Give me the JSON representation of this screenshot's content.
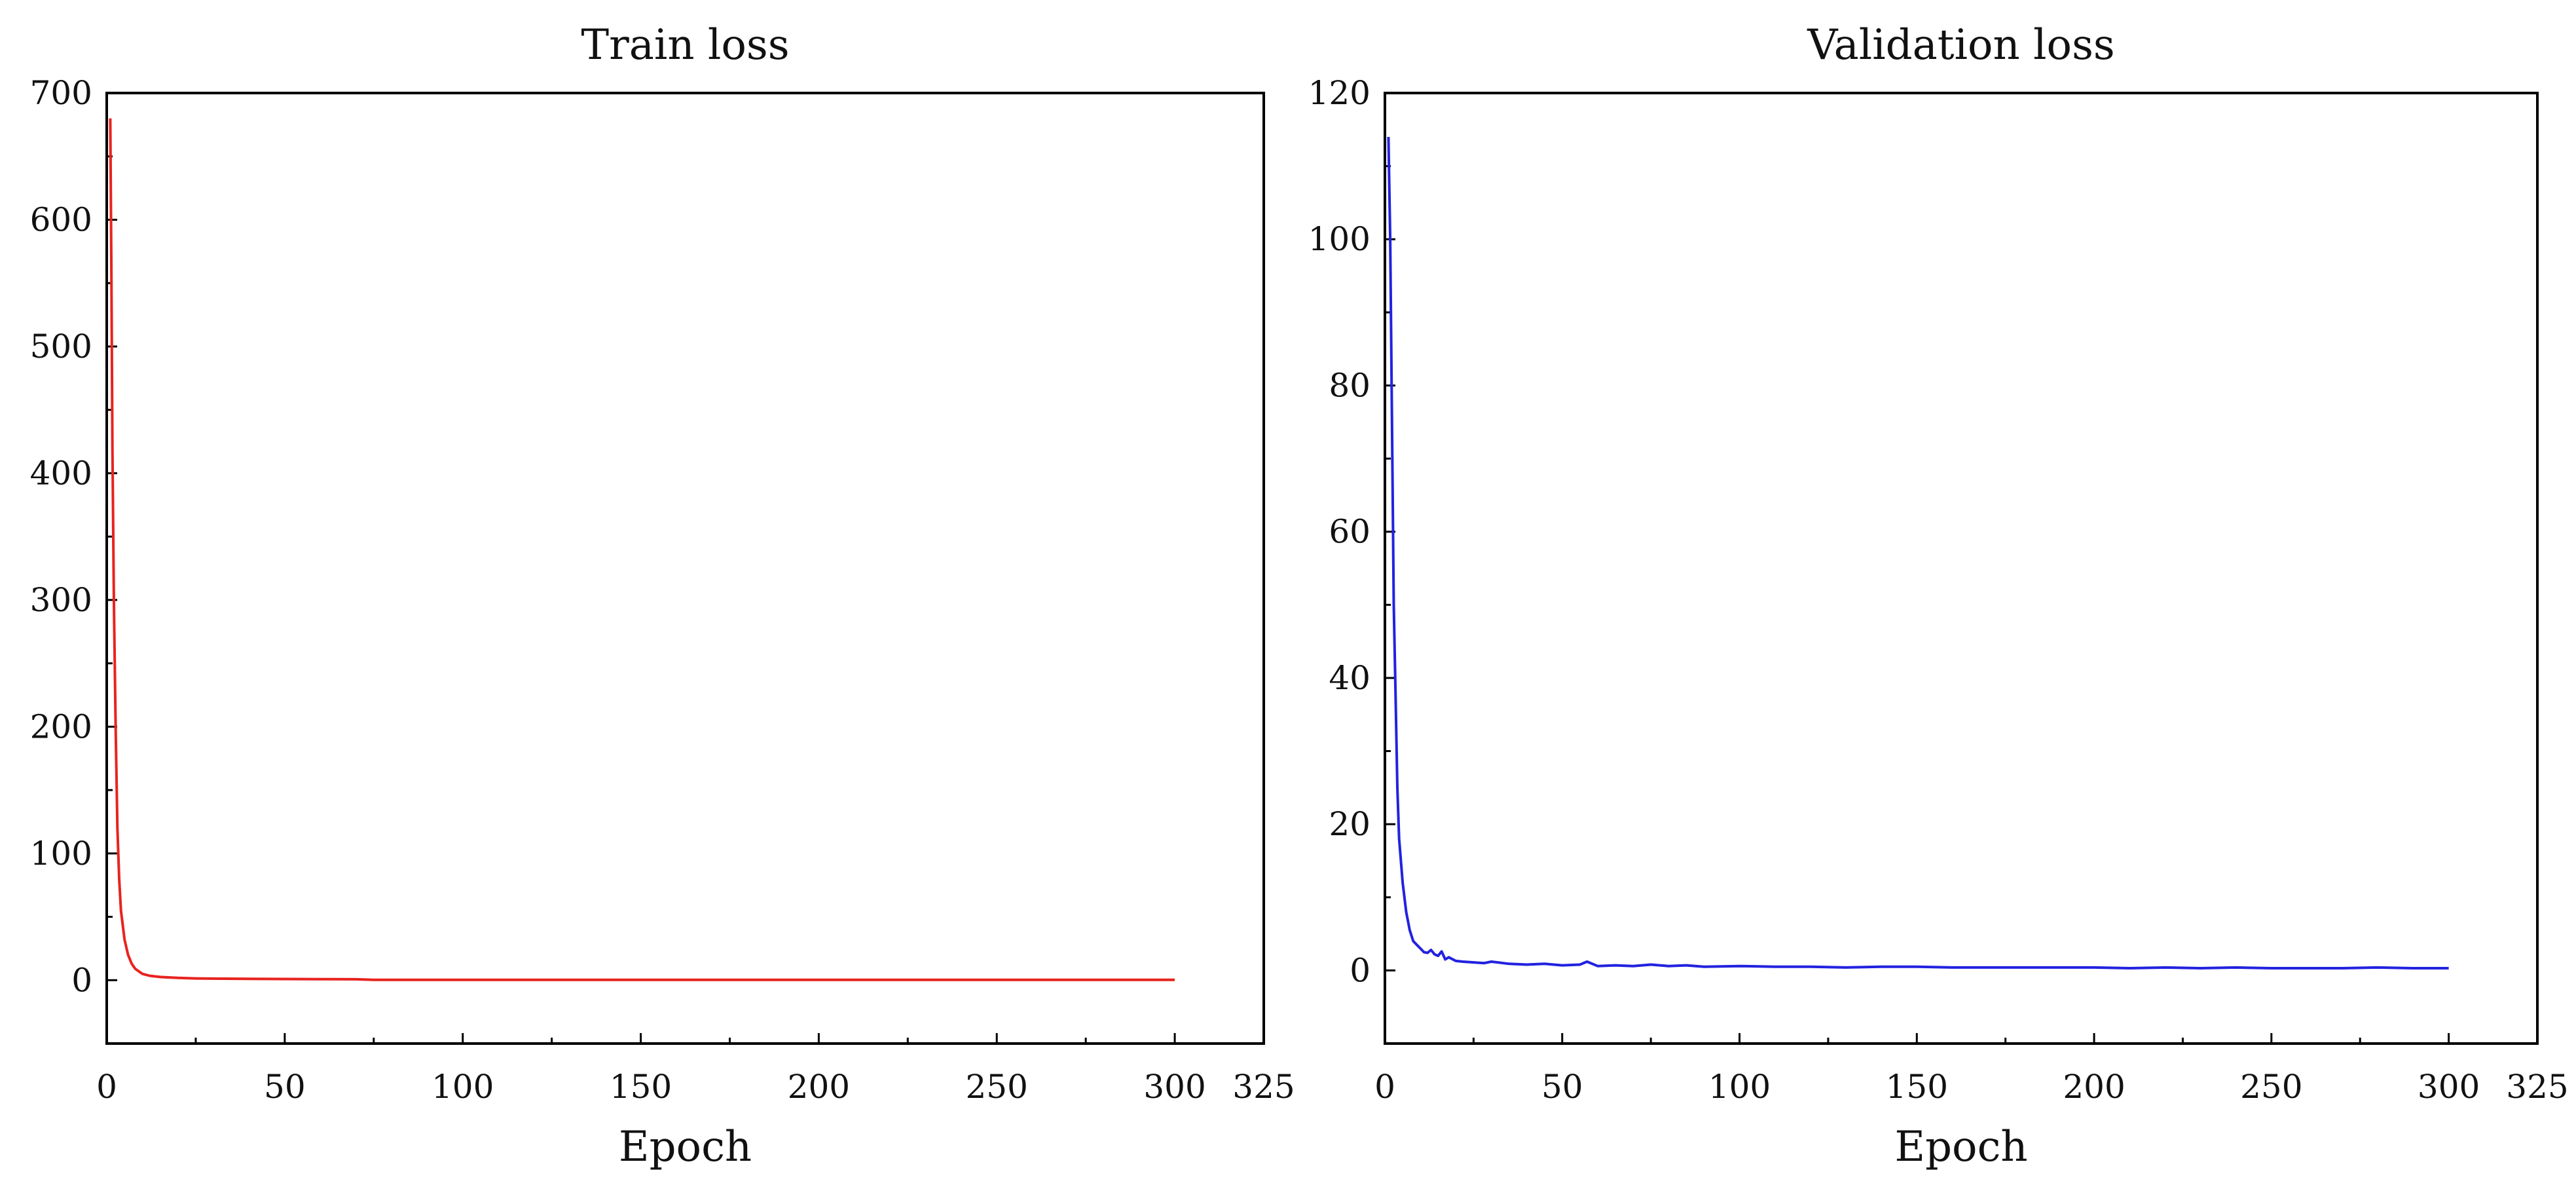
{
  "chart_data": [
    {
      "type": "line",
      "title": "Train loss",
      "xlabel": "Epoch",
      "ylabel": "",
      "xlim": [
        0,
        325
      ],
      "ylim": [
        -50,
        700
      ],
      "xticks": [
        0,
        50,
        100,
        150,
        200,
        250,
        300,
        325
      ],
      "yticks": [
        0,
        100,
        200,
        300,
        400,
        500,
        600,
        700
      ],
      "grid": false,
      "line_color": "#e8231f",
      "series": [
        {
          "x": [
            1,
            1.3,
            1.6,
            2,
            2.5,
            3,
            3.5,
            4,
            5,
            6,
            7,
            8,
            10,
            12,
            15,
            20,
            25,
            30,
            40,
            50,
            60,
            70,
            75,
            100,
            150,
            200,
            250,
            300
          ],
          "y": [
            680,
            560,
            420,
            300,
            200,
            120,
            80,
            55,
            32,
            20,
            13,
            9,
            5,
            3.5,
            2.5,
            1.8,
            1.4,
            1.2,
            1.0,
            0.9,
            0.8,
            0.7,
            0.3,
            0.3,
            0.3,
            0.3,
            0.3,
            0.3
          ]
        }
      ]
    },
    {
      "type": "line",
      "title": "Validation loss",
      "xlabel": "Epoch",
      "ylabel": "",
      "xlim": [
        0,
        325
      ],
      "ylim": [
        -10,
        120
      ],
      "xticks": [
        0,
        50,
        100,
        150,
        200,
        250,
        300,
        325
      ],
      "yticks": [
        0,
        20,
        40,
        60,
        80,
        100,
        120
      ],
      "grid": false,
      "line_color": "#2222e0",
      "series": [
        {
          "x": [
            1,
            1.5,
            2,
            2.5,
            3,
            3.5,
            4,
            5,
            6,
            7,
            8,
            9,
            10,
            11,
            12,
            13,
            14,
            15,
            16,
            17,
            18,
            20,
            22,
            25,
            28,
            30,
            35,
            40,
            45,
            50,
            55,
            57,
            60,
            65,
            70,
            75,
            80,
            85,
            90,
            100,
            110,
            120,
            130,
            140,
            150,
            160,
            170,
            180,
            190,
            200,
            210,
            220,
            230,
            240,
            250,
            260,
            270,
            280,
            290,
            300
          ],
          "y": [
            114,
            100,
            75,
            50,
            38,
            25,
            18,
            12,
            8,
            5.5,
            4,
            3.5,
            3,
            2.5,
            2.4,
            2.8,
            2.2,
            2.0,
            2.6,
            1.5,
            1.8,
            1.3,
            1.2,
            1.1,
            1.0,
            1.2,
            0.9,
            0.8,
            0.9,
            0.7,
            0.8,
            1.2,
            0.6,
            0.7,
            0.6,
            0.8,
            0.6,
            0.7,
            0.5,
            0.6,
            0.5,
            0.5,
            0.4,
            0.5,
            0.5,
            0.4,
            0.4,
            0.4,
            0.4,
            0.4,
            0.3,
            0.4,
            0.3,
            0.4,
            0.3,
            0.3,
            0.3,
            0.4,
            0.3,
            0.3
          ]
        }
      ]
    }
  ]
}
